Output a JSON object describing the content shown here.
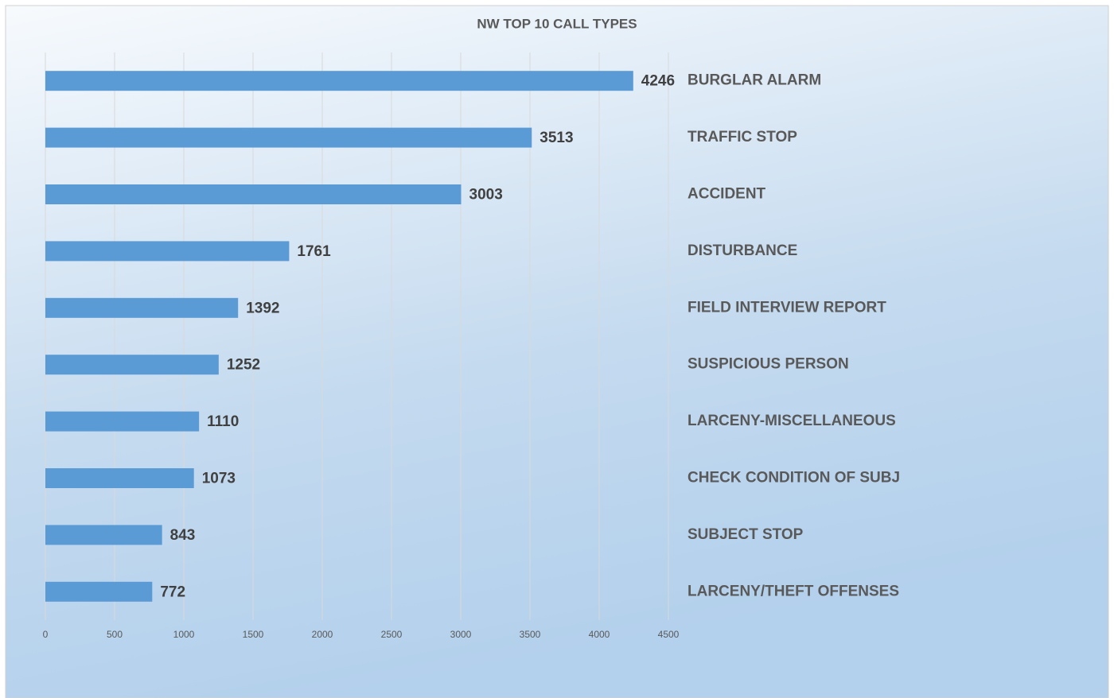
{
  "chart_data": {
    "type": "bar",
    "orientation": "horizontal",
    "title": "NW TOP 10 CALL TYPES",
    "categories": [
      "BURGLAR ALARM",
      "TRAFFIC STOP",
      "ACCIDENT",
      "DISTURBANCE",
      "FIELD INTERVIEW REPORT",
      "SUSPICIOUS PERSON",
      "LARCENY-MISCELLANEOUS",
      "CHECK CONDITION OF SUBJ",
      "SUBJECT STOP",
      "LARCENY/THEFT OFFENSES"
    ],
    "values": [
      4246,
      3513,
      3003,
      1761,
      1392,
      1252,
      1110,
      1073,
      843,
      772
    ],
    "color": "#5b9bd5",
    "xlim": [
      0,
      4500
    ],
    "xticks": [
      0,
      500,
      1000,
      1500,
      2000,
      2500,
      3000,
      3500,
      4000,
      4500
    ],
    "grid": true
  }
}
